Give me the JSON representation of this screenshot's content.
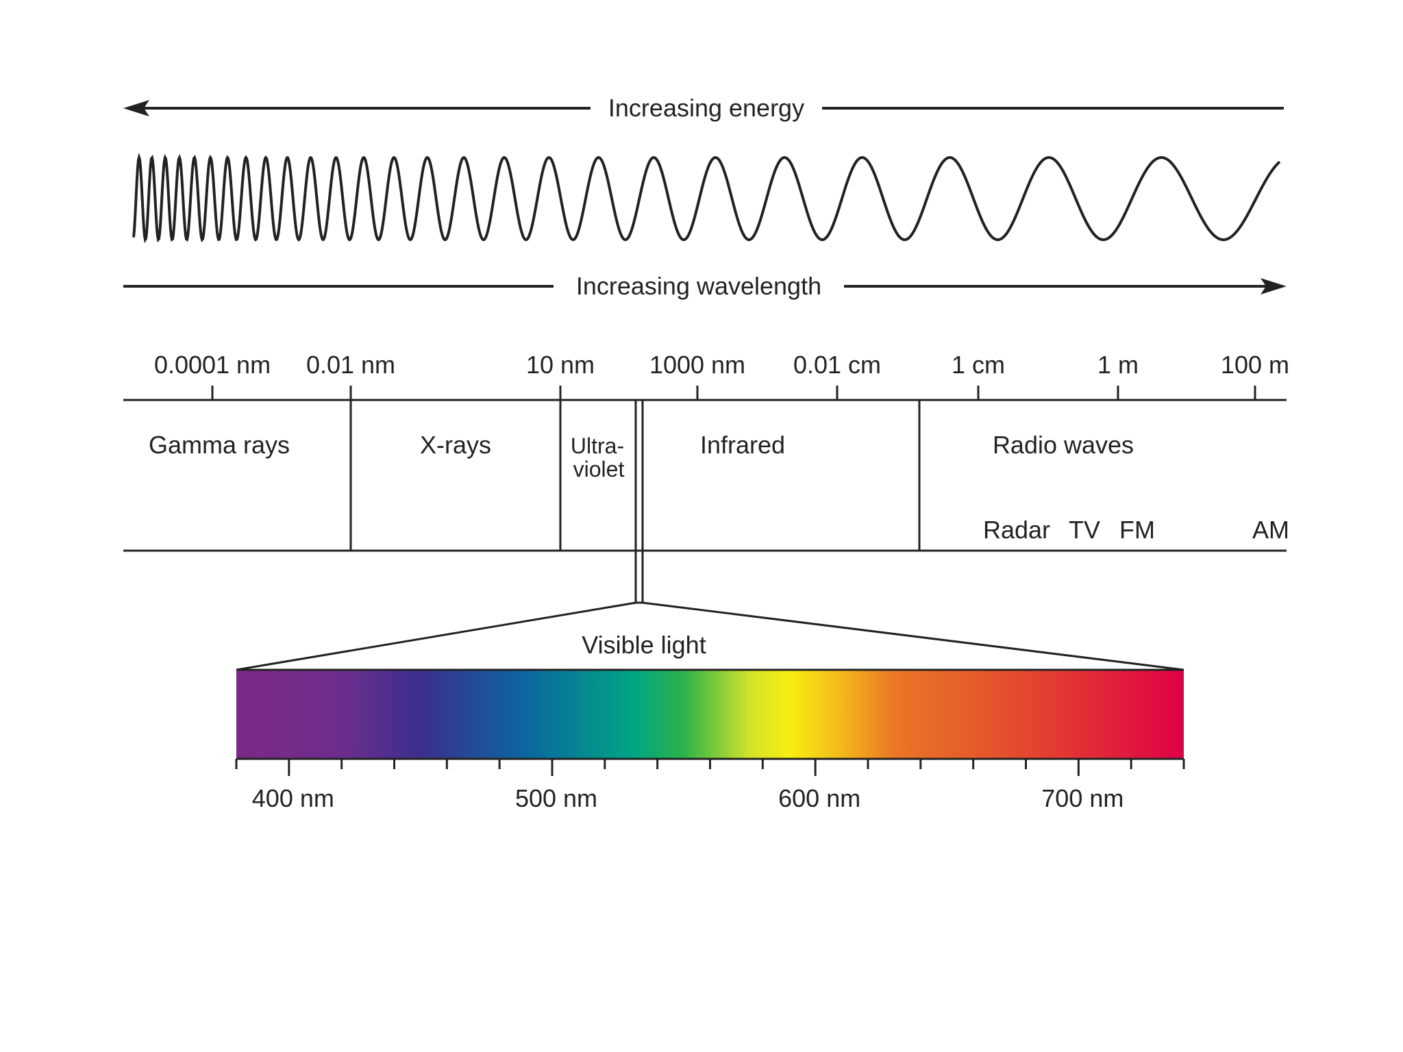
{
  "energy_arrow": {
    "label": "Increasing energy",
    "direction": "left"
  },
  "wavelength_arrow": {
    "label": "Increasing wavelength",
    "direction": "right"
  },
  "scale": {
    "ticks": [
      "0.0001 nm",
      "0.01 nm",
      "10 nm",
      "1000 nm",
      "0.01 cm",
      "1 cm",
      "1 m",
      "100 m"
    ]
  },
  "bands": [
    {
      "id": "gamma",
      "lines": [
        "Gamma rays"
      ]
    },
    {
      "id": "xray",
      "lines": [
        "X-rays"
      ]
    },
    {
      "id": "uv",
      "lines": [
        "Ultra-",
        "violet"
      ]
    },
    {
      "id": "ir",
      "lines": [
        "Infrared"
      ]
    },
    {
      "id": "radio",
      "lines": [
        "Radio waves"
      ]
    }
  ],
  "radio_subbands": [
    "Radar",
    "TV",
    "FM",
    "AM"
  ],
  "visible": {
    "label": "Visible light",
    "range_nm": [
      380,
      740
    ],
    "tick_labels": [
      "400 nm",
      "500 nm",
      "600 nm",
      "700 nm"
    ],
    "label_values_nm": [
      400,
      500,
      600,
      700
    ],
    "minor_tick_step_nm": 20,
    "colors": [
      {
        "nm": 380,
        "color": "#7b2a86"
      },
      {
        "nm": 420,
        "color": "#6e2d8e"
      },
      {
        "nm": 450,
        "color": "#3b2f8c"
      },
      {
        "nm": 490,
        "color": "#0c66a0"
      },
      {
        "nm": 530,
        "color": "#00a485"
      },
      {
        "nm": 550,
        "color": "#2bb24c"
      },
      {
        "nm": 575,
        "color": "#d2e32b"
      },
      {
        "nm": 590,
        "color": "#f7ef12"
      },
      {
        "nm": 610,
        "color": "#f3b81c"
      },
      {
        "nm": 630,
        "color": "#ea7726"
      },
      {
        "nm": 680,
        "color": "#e4482e"
      },
      {
        "nm": 740,
        "color": "#df0046"
      }
    ]
  }
}
